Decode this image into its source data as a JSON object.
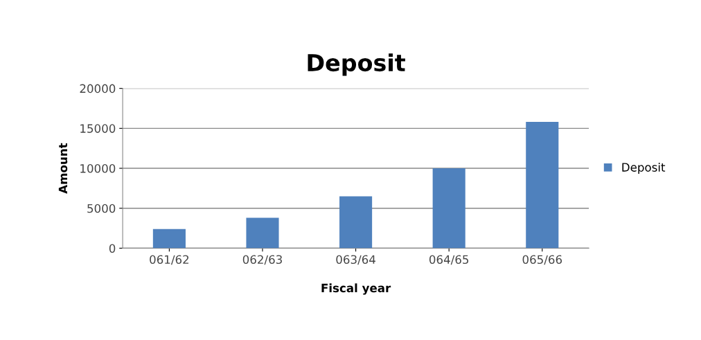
{
  "chart_data": {
    "type": "bar",
    "title": "Deposit",
    "xlabel": "Fiscal year",
    "ylabel": "Amount",
    "categories": [
      "061/62",
      "062/63",
      "063/64",
      "064/65",
      "065/66"
    ],
    "series": [
      {
        "name": "Deposit",
        "color": "#4f81bd",
        "values": [
          2400,
          3800,
          6500,
          10000,
          15800
        ]
      }
    ],
    "ylim": [
      0,
      20000
    ],
    "yticks": [
      0,
      5000,
      10000,
      15000,
      20000
    ],
    "grid": "y",
    "legend": "right"
  }
}
